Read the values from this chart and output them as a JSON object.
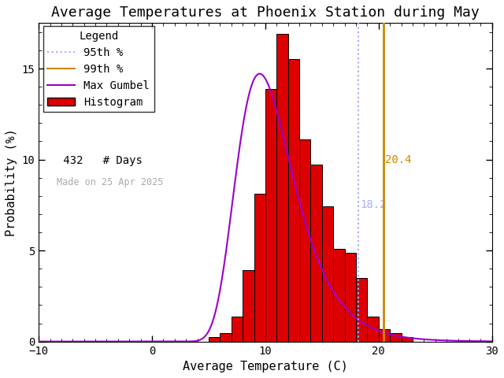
{
  "title": "Average Temperatures at Phoenix Station during May",
  "xlabel": "Average Temperature (C)",
  "ylabel": "Probability (%)",
  "xlim": [
    -10,
    30
  ],
  "ylim": [
    0,
    17.5
  ],
  "n_days": 432,
  "made_on": "Made on 25 Apr 2025",
  "pct95_val": 18.2,
  "pct99_val": 20.4,
  "pct95_label": "18.2",
  "pct99_label": "20.4",
  "gumbel_mu": 9.5,
  "gumbel_beta": 2.5,
  "bin_edges": [
    5,
    6,
    7,
    8,
    9,
    10,
    11,
    12,
    13,
    14,
    15,
    16,
    17,
    18,
    19,
    20,
    21,
    22,
    23,
    24
  ],
  "bin_heights": [
    0.23,
    0.46,
    1.39,
    3.94,
    8.1,
    13.89,
    16.9,
    15.51,
    11.11,
    9.72,
    7.41,
    5.09,
    4.86,
    3.47,
    1.39,
    0.69,
    0.46,
    0.23,
    0.0,
    0.0
  ],
  "bar_color": "#dd0000",
  "bar_edgecolor": "#000000",
  "gumbel_color": "#9900cc",
  "pct95_color": "#aaaaff",
  "pct99_color": "#cc8800",
  "legend_title": "Legend",
  "legend_fontsize": 10,
  "title_fontsize": 13,
  "axis_fontsize": 11,
  "tick_fontsize": 10
}
